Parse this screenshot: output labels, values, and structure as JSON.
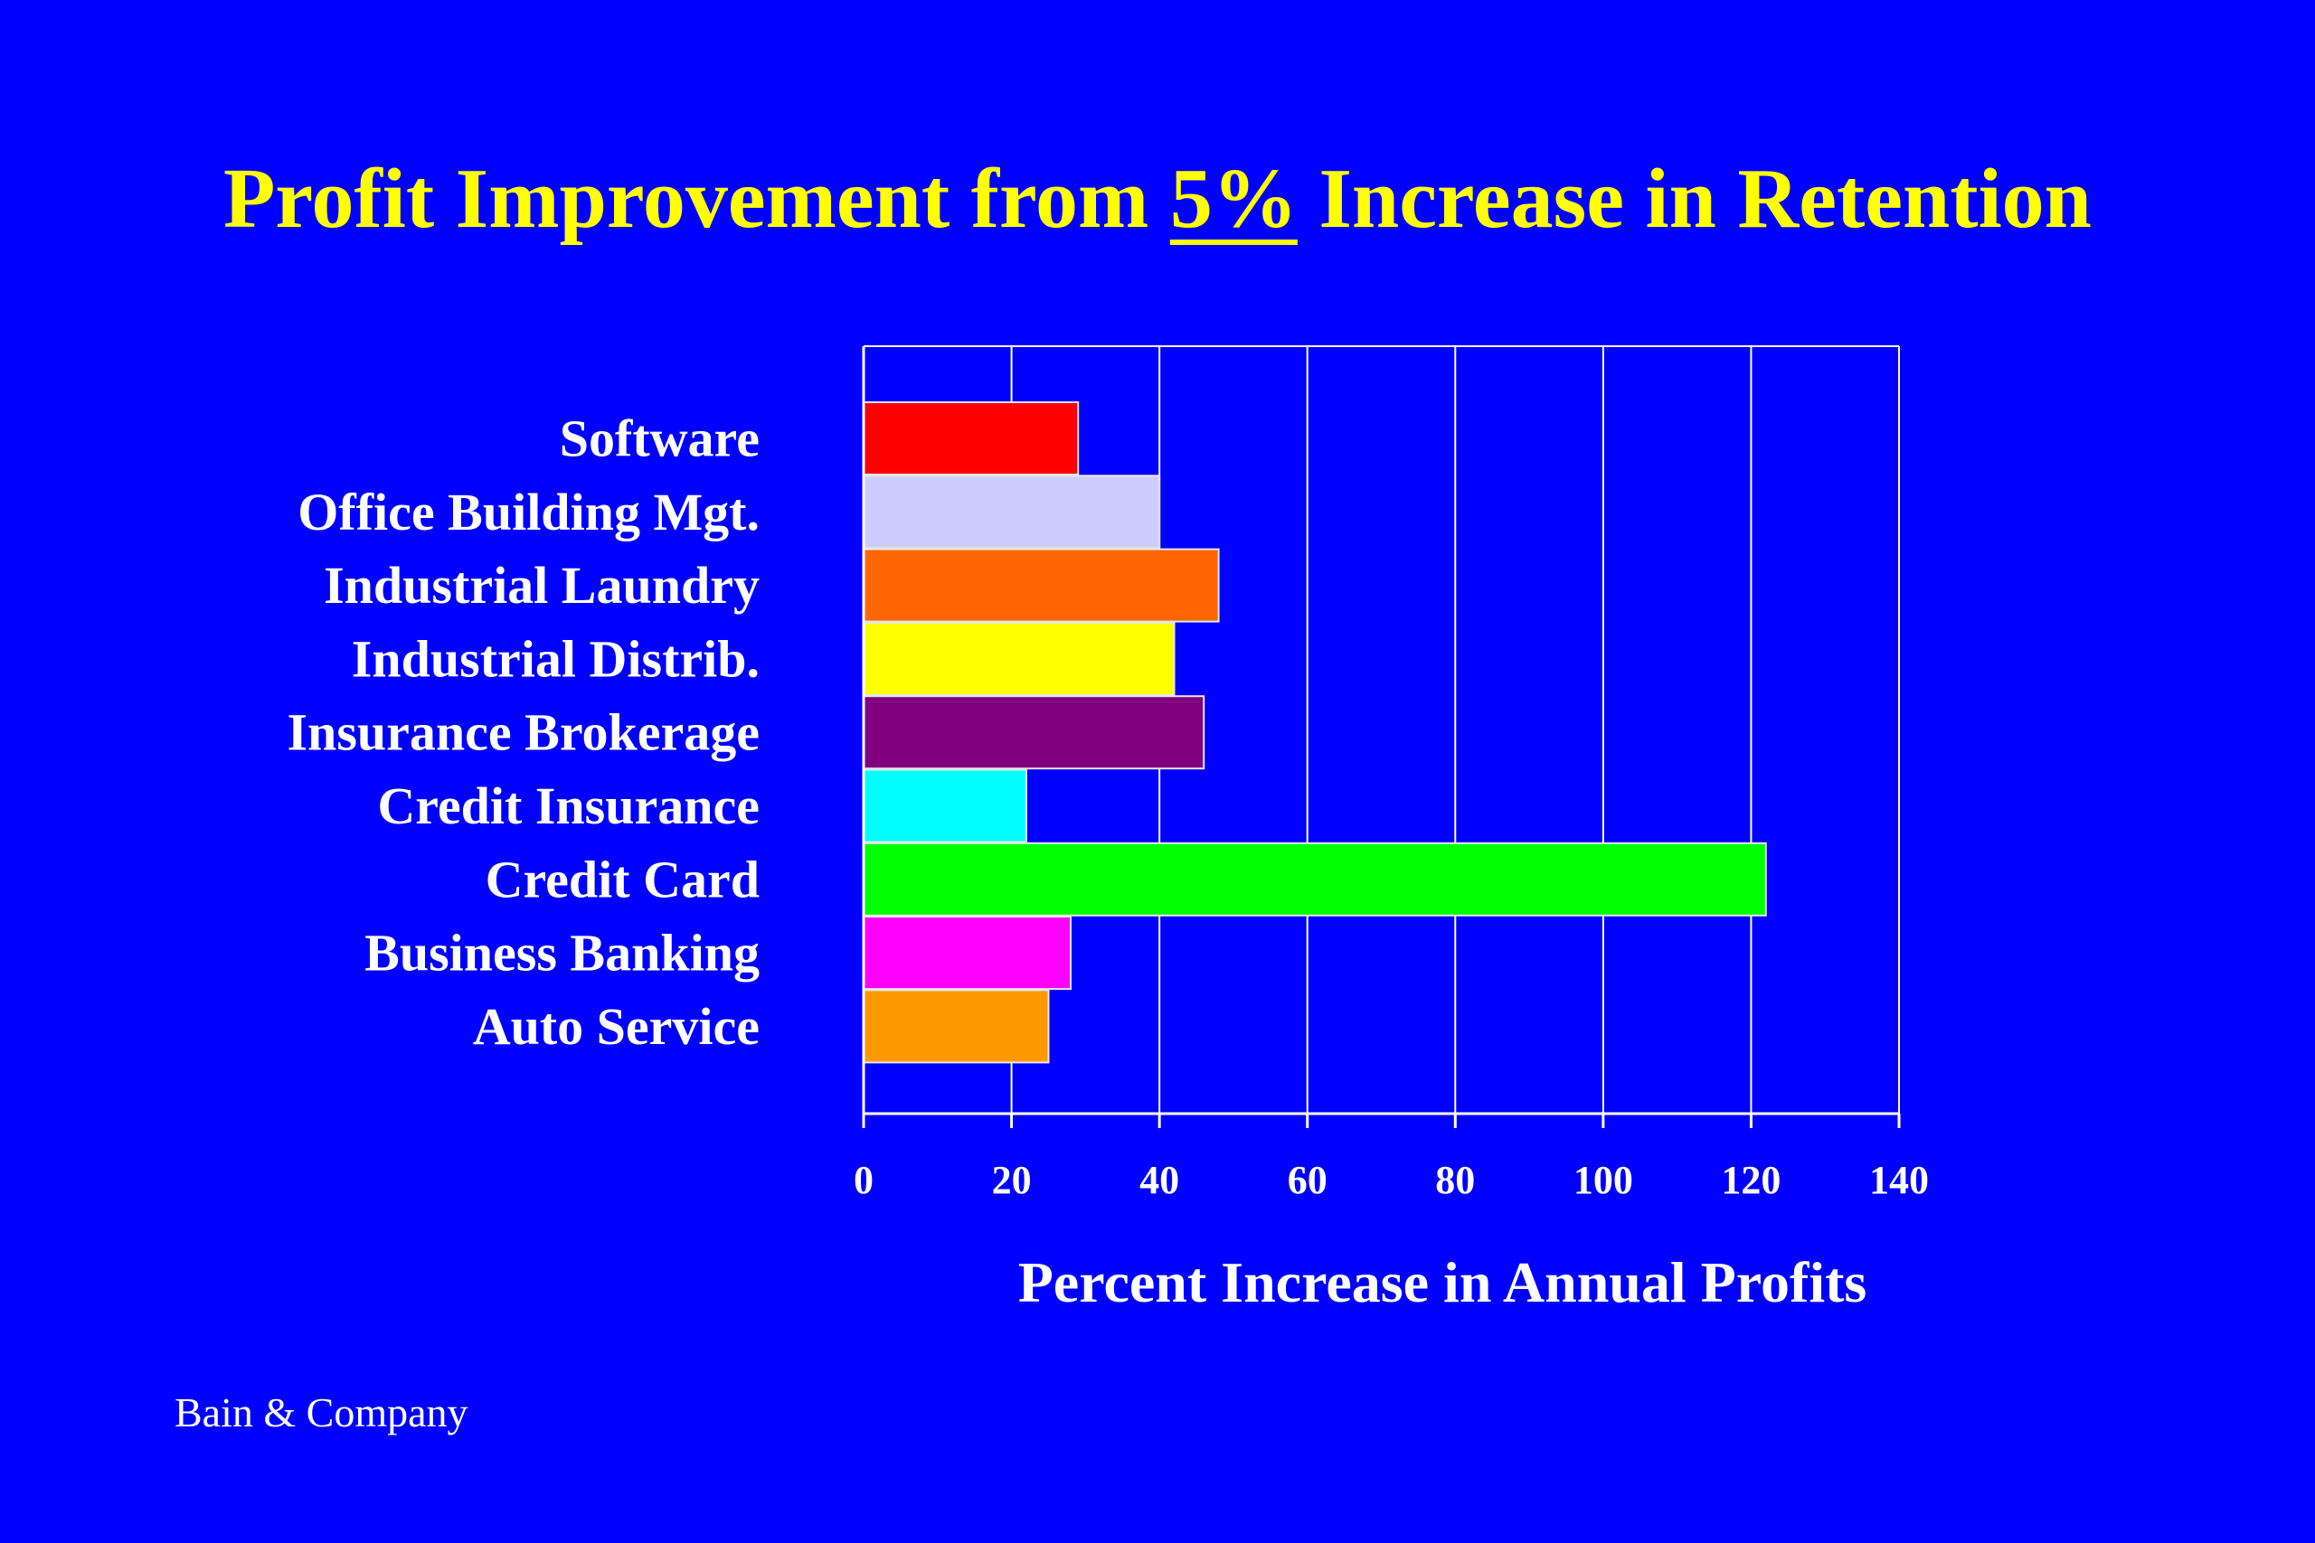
{
  "title": {
    "before": "Profit Improvement from ",
    "highlight": "5%",
    "after": " Increase in Retention"
  },
  "source": "Bain & Company",
  "chart_data": {
    "type": "bar",
    "orientation": "horizontal",
    "title": "Profit Improvement from 5% Increase in Retention",
    "xlabel": "Percent Increase in Annual Profits",
    "ylabel": "",
    "xlim": [
      0,
      140
    ],
    "xticks": [
      0,
      20,
      40,
      60,
      80,
      100,
      120,
      140
    ],
    "grid": true,
    "categories": [
      "Software",
      "Office Building Mgt.",
      "Industrial Laundry",
      "Industrial Distrib.",
      "Insurance Brokerage",
      "Credit Insurance",
      "Credit Card",
      "Business Banking",
      "Auto Service"
    ],
    "values": [
      29,
      40,
      48,
      42,
      46,
      22,
      122,
      28,
      25
    ],
    "colors": [
      "#ff0000",
      "#ccccff",
      "#ff6600",
      "#ffff00",
      "#800080",
      "#00ffff",
      "#00ff00",
      "#ff00ff",
      "#ff9900"
    ]
  }
}
